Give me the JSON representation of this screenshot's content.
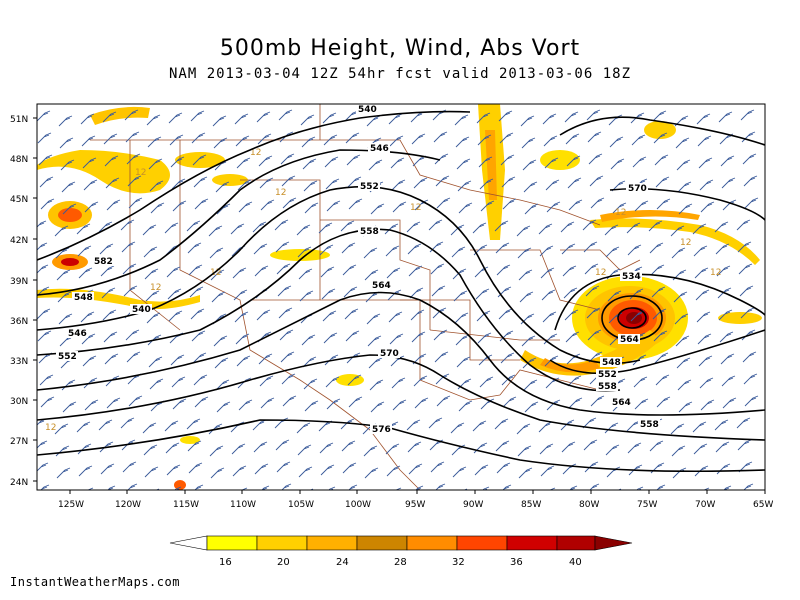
{
  "title": "500mb Height, Wind, Abs Vort",
  "subtitle": "NAM 2013-03-04 12Z 54hr fcst valid 2013-03-06 18Z",
  "credit": "InstantWeatherMaps.com",
  "colors": {
    "contour": "#000000",
    "barb": "#3a5a9a",
    "border": "#a0522d",
    "thin_contour": "#c8902a"
  },
  "lat_labels": [
    "51N",
    "48N",
    "45N",
    "42N",
    "39N",
    "36N",
    "33N",
    "30N",
    "27N",
    "24N"
  ],
  "lon_labels": [
    "125W",
    "120W",
    "115W",
    "110W",
    "105W",
    "100W",
    "95W",
    "90W",
    "85W",
    "80W",
    "75W",
    "70W",
    "65W"
  ],
  "height_contour_labels": [
    "540",
    "546",
    "552",
    "558",
    "564",
    "570",
    "576",
    "582",
    "548",
    "540",
    "546",
    "552",
    "558",
    "564",
    "570",
    "534",
    "548",
    "552",
    "558",
    "564"
  ],
  "colorbar": {
    "levels": [
      "16",
      "20",
      "24",
      "28",
      "32",
      "36",
      "40"
    ],
    "colors": [
      "#ffffff",
      "#ffff00",
      "#ffd700",
      "#ffa500",
      "#cd8500",
      "#ff8c00",
      "#ff4500",
      "#cc0000",
      "#a00000"
    ]
  }
}
